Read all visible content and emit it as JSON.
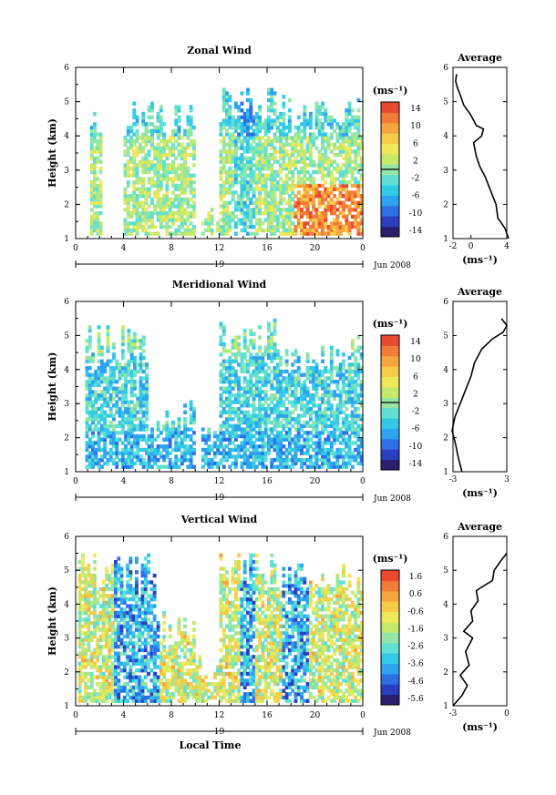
{
  "colors": {
    "scale": [
      "#2b1e6b",
      "#2a3fc0",
      "#2f6fe6",
      "#2fa3ef",
      "#34c9e6",
      "#5fe0d2",
      "#95e6a6",
      "#c6e96b",
      "#eee85a",
      "#f6cb4a",
      "#f6a53f",
      "#f27b37",
      "#e9492f"
    ]
  },
  "chart_data": [
    {
      "type": "heatmap",
      "title": "Zonal Wind",
      "ylabel": "Height (km)",
      "ylim": [
        1,
        6
      ],
      "yticks": [
        "1",
        "2",
        "3",
        "4",
        "5",
        "6"
      ],
      "xticks": [
        "0",
        "4",
        "8",
        "12",
        "16",
        "20",
        "0"
      ],
      "xlim": [
        0,
        24
      ],
      "date_label": "19",
      "date_suffix": "Jun 2008",
      "colorbar_unit": "(ms⁻¹)",
      "colorbar_ticks": [
        "14",
        "10",
        "6",
        "2",
        "-2",
        "-6",
        "-10",
        "-14"
      ],
      "colorbar_range": [
        -16,
        16
      ],
      "zero_line": 2,
      "profile": {
        "title": "Average",
        "xlabel": "(ms⁻¹)",
        "xticks": [
          "-2",
          "0",
          "4"
        ],
        "xtick_values": [
          -2,
          0,
          4
        ],
        "xlim": [
          -2,
          4
        ],
        "heights": [
          1.0,
          1.3,
          1.6,
          2.0,
          2.4,
          2.8,
          3.1,
          3.4,
          3.8,
          4.0,
          4.2,
          4.3,
          4.6,
          4.9,
          5.2,
          5.4,
          5.6,
          5.8
        ],
        "values": [
          4.2,
          3.8,
          3.0,
          2.8,
          2.2,
          1.6,
          1.0,
          0.6,
          0.3,
          1.2,
          1.4,
          0.6,
          0.0,
          -0.8,
          -1.2,
          -1.5,
          -1.7,
          -1.6
        ]
      }
    },
    {
      "type": "heatmap",
      "title": "Meridional Wind",
      "ylabel": "Height (km)",
      "ylim": [
        1,
        6
      ],
      "yticks": [
        "1",
        "2",
        "3",
        "4",
        "5",
        "6"
      ],
      "xticks": [
        "0",
        "4",
        "8",
        "12",
        "16",
        "20",
        "0"
      ],
      "xlim": [
        0,
        24
      ],
      "date_label": "19",
      "date_suffix": "Jun 2008",
      "colorbar_unit": "(ms⁻¹)",
      "colorbar_ticks": [
        "14",
        "10",
        "6",
        "2",
        "-2",
        "-6",
        "-10",
        "-14"
      ],
      "colorbar_range": [
        -16,
        16
      ],
      "zero_line": -3,
      "profile": {
        "title": "Average",
        "xlabel": "(ms⁻¹)",
        "xticks": [
          "-3",
          "3"
        ],
        "xtick_values": [
          -3,
          3
        ],
        "xlim": [
          -3,
          3
        ],
        "heights": [
          1.0,
          1.4,
          1.8,
          2.2,
          2.6,
          3.0,
          3.4,
          3.8,
          4.2,
          4.6,
          4.9,
          5.1,
          5.3,
          5.5
        ],
        "values": [
          -2.0,
          -2.4,
          -2.7,
          -3.1,
          -2.8,
          -2.2,
          -1.6,
          -1.0,
          -0.6,
          0.2,
          1.4,
          2.6,
          3.0,
          2.4
        ]
      }
    },
    {
      "type": "heatmap",
      "title": "Vertical Wind",
      "ylabel": "Height (km)",
      "ylim": [
        1,
        6
      ],
      "yticks": [
        "1",
        "2",
        "3",
        "4",
        "5",
        "6"
      ],
      "xticks": [
        "0",
        "4",
        "8",
        "12",
        "16",
        "20",
        "0"
      ],
      "xlim": [
        0,
        24
      ],
      "date_label": "19",
      "date_suffix": "Jun 2008",
      "xlabel": "Local Time",
      "colorbar_unit": "(ms⁻¹)",
      "colorbar_ticks": [
        "1.6",
        "0.6",
        "-0.6",
        "-1.6",
        "-2.6",
        "-3.6",
        "-4.6",
        "-5.6"
      ],
      "colorbar_range": [
        -6,
        2
      ],
      "zero_line": null,
      "profile": {
        "title": "Average",
        "xlabel": "(ms⁻¹)",
        "xticks": [
          "-3",
          "0"
        ],
        "xtick_values": [
          -3,
          0
        ],
        "xlim": [
          -3,
          0
        ],
        "heights": [
          1.0,
          1.3,
          1.6,
          1.9,
          2.2,
          2.6,
          3.0,
          3.2,
          3.5,
          3.8,
          4.1,
          4.4,
          4.7,
          5.0,
          5.3,
          5.5
        ],
        "values": [
          -3.0,
          -2.5,
          -2.2,
          -2.6,
          -2.1,
          -2.3,
          -1.9,
          -2.4,
          -1.9,
          -2.0,
          -1.6,
          -1.7,
          -0.8,
          -0.7,
          -0.3,
          0.0
        ]
      }
    }
  ]
}
